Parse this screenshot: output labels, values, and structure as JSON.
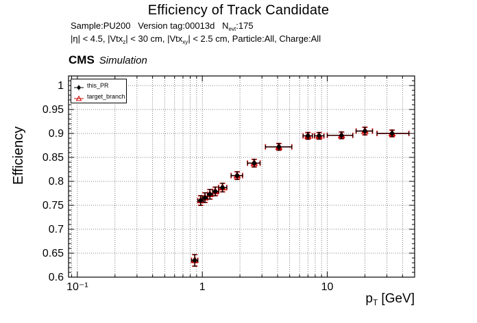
{
  "title": "Efficiency of Track Candidate",
  "subtitle1": {
    "pre": "Sample:PU200   Version tag:00013d   N",
    "sub": "evt",
    "post": ":175"
  },
  "subtitle2": {
    "p1": "|η| < 4.5, |Vtx",
    "s1": "z",
    "p2": "| < 30 cm, |Vtx",
    "s2": "xy",
    "p3": "| < 2.5 cm, Particle:All, Charge:All"
  },
  "cms_label": {
    "bold": "CMS",
    "italic": "Simulation"
  },
  "y_axis_title": "Efficiency",
  "x_axis_title": {
    "pre": "p",
    "sub": "T",
    "post": " [GeV]"
  },
  "legend": [
    {
      "label": "this_PR",
      "color": "#000000",
      "marker": "filled-circle"
    },
    {
      "label": "target_branch",
      "color": "#cc0000",
      "marker": "open-triangle"
    }
  ],
  "chart_data": {
    "type": "scatter",
    "title": "Efficiency of Track Candidate",
    "xlabel": "pT [GeV]",
    "ylabel": "Efficiency",
    "xscale": "log",
    "xlim": [
      0.085,
      50
    ],
    "ylim": [
      0.6,
      1.02
    ],
    "y_ticks": [
      0.6,
      0.65,
      0.7,
      0.75,
      0.8,
      0.85,
      0.9,
      0.95,
      1.0
    ],
    "y_tick_labels": [
      "0.6",
      "0.65",
      "0.7",
      "0.75",
      "0.8",
      "0.85",
      "0.9",
      "0.95",
      "1"
    ],
    "x_major_ticks": [
      0.1,
      1,
      10
    ],
    "x_tick_labels": [
      "10⁻¹",
      "1",
      "10"
    ],
    "grid": true,
    "legend_position": "top-left",
    "series": [
      {
        "name": "this_PR",
        "marker": "filled-circle",
        "color": "#000000",
        "points": [
          {
            "x": 0.87,
            "y": 0.635,
            "xerr_lo": 0.05,
            "xerr_hi": 0.05,
            "yerr": 0.012
          },
          {
            "x": 0.97,
            "y": 0.76,
            "xerr_lo": 0.05,
            "xerr_hi": 0.05,
            "yerr": 0.01
          },
          {
            "x": 1.05,
            "y": 0.766,
            "xerr_lo": 0.05,
            "xerr_hi": 0.05,
            "yerr": 0.01
          },
          {
            "x": 1.15,
            "y": 0.773,
            "xerr_lo": 0.05,
            "xerr_hi": 0.06,
            "yerr": 0.01
          },
          {
            "x": 1.27,
            "y": 0.779,
            "xerr_lo": 0.06,
            "xerr_hi": 0.08,
            "yerr": 0.009
          },
          {
            "x": 1.45,
            "y": 0.787,
            "xerr_lo": 0.1,
            "xerr_hi": 0.12,
            "yerr": 0.009
          },
          {
            "x": 1.9,
            "y": 0.812,
            "xerr_lo": 0.2,
            "xerr_hi": 0.2,
            "yerr": 0.008
          },
          {
            "x": 2.6,
            "y": 0.838,
            "xerr_lo": 0.3,
            "xerr_hi": 0.3,
            "yerr": 0.008
          },
          {
            "x": 4.1,
            "y": 0.872,
            "xerr_lo": 0.9,
            "xerr_hi": 1.1,
            "yerr": 0.007
          },
          {
            "x": 7.0,
            "y": 0.895,
            "xerr_lo": 0.6,
            "xerr_hi": 0.6,
            "yerr": 0.007
          },
          {
            "x": 8.6,
            "y": 0.895,
            "xerr_lo": 0.7,
            "xerr_hi": 0.8,
            "yerr": 0.007
          },
          {
            "x": 13.0,
            "y": 0.896,
            "xerr_lo": 3.0,
            "xerr_hi": 3.0,
            "yerr": 0.007
          },
          {
            "x": 20.0,
            "y": 0.905,
            "xerr_lo": 3.0,
            "xerr_hi": 3.0,
            "yerr": 0.008
          },
          {
            "x": 33.0,
            "y": 0.9,
            "xerr_lo": 8.0,
            "xerr_hi": 12.0,
            "yerr": 0.007
          }
        ]
      },
      {
        "name": "target_branch",
        "marker": "open-triangle",
        "color": "#cc0000",
        "points": [
          {
            "x": 0.87,
            "y": 0.635,
            "xerr_lo": 0.05,
            "xerr_hi": 0.05,
            "yerr": 0.012
          },
          {
            "x": 0.97,
            "y": 0.76,
            "xerr_lo": 0.05,
            "xerr_hi": 0.05,
            "yerr": 0.01
          },
          {
            "x": 1.05,
            "y": 0.766,
            "xerr_lo": 0.05,
            "xerr_hi": 0.05,
            "yerr": 0.01
          },
          {
            "x": 1.15,
            "y": 0.773,
            "xerr_lo": 0.05,
            "xerr_hi": 0.06,
            "yerr": 0.01
          },
          {
            "x": 1.27,
            "y": 0.779,
            "xerr_lo": 0.06,
            "xerr_hi": 0.08,
            "yerr": 0.009
          },
          {
            "x": 1.45,
            "y": 0.787,
            "xerr_lo": 0.1,
            "xerr_hi": 0.12,
            "yerr": 0.009
          },
          {
            "x": 1.9,
            "y": 0.812,
            "xerr_lo": 0.2,
            "xerr_hi": 0.2,
            "yerr": 0.008
          },
          {
            "x": 2.6,
            "y": 0.838,
            "xerr_lo": 0.3,
            "xerr_hi": 0.3,
            "yerr": 0.008
          },
          {
            "x": 4.1,
            "y": 0.872,
            "xerr_lo": 0.9,
            "xerr_hi": 1.1,
            "yerr": 0.007
          },
          {
            "x": 7.0,
            "y": 0.895,
            "xerr_lo": 0.6,
            "xerr_hi": 0.6,
            "yerr": 0.007
          },
          {
            "x": 8.6,
            "y": 0.895,
            "xerr_lo": 0.7,
            "xerr_hi": 0.8,
            "yerr": 0.007
          },
          {
            "x": 13.0,
            "y": 0.896,
            "xerr_lo": 3.0,
            "xerr_hi": 3.0,
            "yerr": 0.007
          },
          {
            "x": 20.0,
            "y": 0.905,
            "xerr_lo": 3.0,
            "xerr_hi": 3.0,
            "yerr": 0.008
          },
          {
            "x": 33.0,
            "y": 0.9,
            "xerr_lo": 8.0,
            "xerr_hi": 12.0,
            "yerr": 0.007
          }
        ]
      }
    ]
  }
}
